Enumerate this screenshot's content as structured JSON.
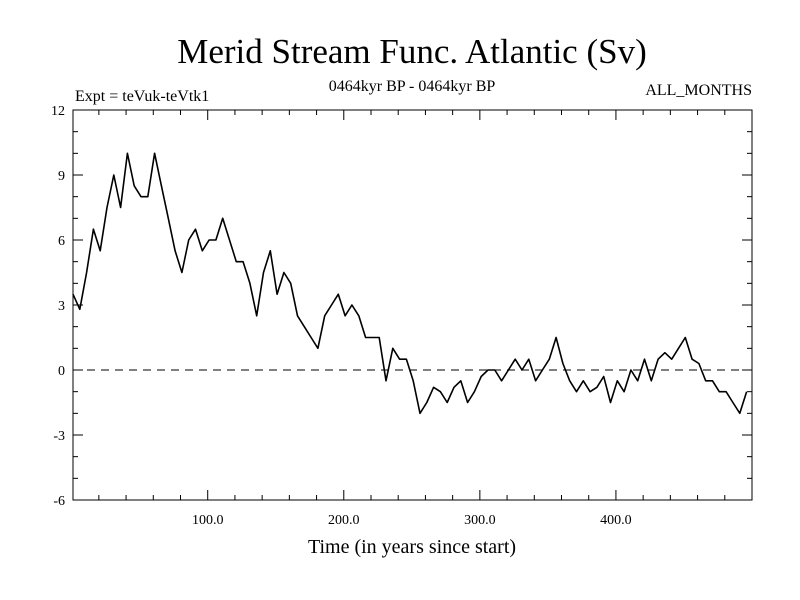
{
  "chart_data": {
    "type": "line",
    "title": "Merid Stream Func. Atlantic (Sv)",
    "subtitle_left": "Expt = teVuk-teVtk1",
    "subtitle_center": "0464kyr BP - 0464kyr BP",
    "subtitle_right": "ALL_MONTHS",
    "xlabel": "Time (in years since start)",
    "ylabel": "",
    "xlim": [
      1,
      500
    ],
    "ylim": [
      -6,
      12
    ],
    "x_ticks": [
      100,
      200,
      300,
      400
    ],
    "x_tick_labels": [
      "100.0",
      "200.0",
      "300.0",
      "400.0"
    ],
    "y_ticks": [
      -6,
      -3,
      0,
      3,
      6,
      9,
      12
    ],
    "y_tick_labels": [
      "-6",
      "-3",
      "0",
      "3",
      "6",
      "9",
      "12"
    ],
    "zero_line": "dashed",
    "grid": false,
    "series": [
      {
        "color": "#000000",
        "x_start": 1,
        "x_step": 5,
        "values": [
          3.5,
          2.8,
          4.5,
          6.5,
          5.5,
          7.5,
          9.0,
          7.5,
          10.0,
          8.5,
          8.0,
          8.0,
          10.0,
          8.5,
          7.0,
          5.5,
          4.5,
          6.0,
          6.5,
          5.5,
          6.0,
          6.0,
          7.0,
          6.0,
          5.0,
          5.0,
          4.0,
          2.5,
          4.5,
          5.5,
          3.5,
          4.5,
          4.0,
          2.5,
          2.0,
          1.5,
          1.0,
          2.5,
          3.0,
          3.5,
          2.5,
          3.0,
          2.5,
          1.5,
          1.5,
          1.5,
          -0.5,
          1.0,
          0.5,
          0.5,
          -0.5,
          -2.0,
          -1.5,
          -0.8,
          -1.0,
          -1.5,
          -0.8,
          -0.5,
          -1.5,
          -1.0,
          -0.3,
          0.0,
          0.0,
          -0.5,
          0.0,
          0.5,
          0.0,
          0.5,
          -0.5,
          0.0,
          0.5,
          1.5,
          0.3,
          -0.5,
          -1.0,
          -0.5,
          -1.0,
          -0.8,
          -0.3,
          -1.5,
          -0.5,
          -1.0,
          0.0,
          -0.5,
          0.5,
          -0.5,
          0.5,
          0.8,
          0.5,
          1.0,
          1.5,
          0.5,
          0.3,
          -0.5,
          -0.5,
          -1.0,
          -1.0,
          -1.5,
          -2.0,
          -1.0
        ]
      }
    ]
  }
}
